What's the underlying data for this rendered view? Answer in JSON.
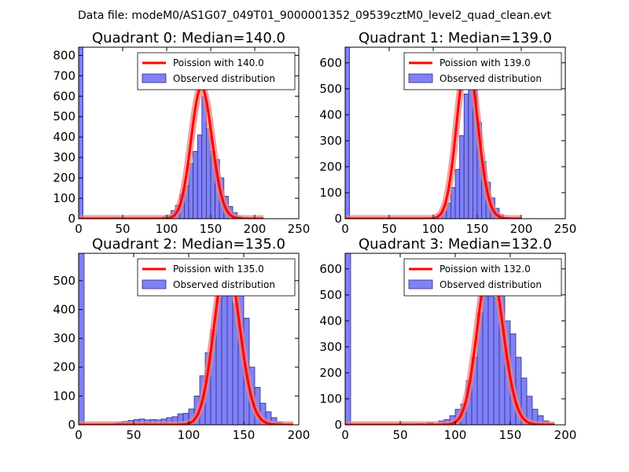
{
  "suptitle": "Data file: modeM0/AS1G07_049T01_9000001352_09539cztM0_level2_quad_clean.evt",
  "colors": {
    "bar_fill": "#8080f8",
    "bar_edge": "#303080",
    "curve": "#ff0000",
    "curve_glow": "#f08080"
  },
  "chart_data": [
    {
      "type": "bar",
      "title": "Quadrant 0: Median=140.0",
      "xlim": [
        0,
        250
      ],
      "ylim": [
        0,
        840
      ],
      "xticks": [
        0,
        50,
        100,
        150,
        200,
        250
      ],
      "yticks": [
        0,
        100,
        200,
        300,
        400,
        500,
        600,
        700,
        800
      ],
      "bin_width": 5,
      "bins": [
        [
          0,
          840
        ],
        [
          95,
          8
        ],
        [
          100,
          15
        ],
        [
          105,
          40
        ],
        [
          110,
          65
        ],
        [
          115,
          120
        ],
        [
          120,
          160
        ],
        [
          125,
          270
        ],
        [
          130,
          330
        ],
        [
          135,
          410
        ],
        [
          140,
          600
        ],
        [
          145,
          440
        ],
        [
          150,
          330
        ],
        [
          155,
          290
        ],
        [
          160,
          200
        ],
        [
          165,
          110
        ],
        [
          170,
          60
        ],
        [
          175,
          30
        ],
        [
          180,
          10
        ],
        [
          185,
          3
        ],
        [
          190,
          1
        ]
      ],
      "poisson": {
        "label": "Poission with 140.0",
        "mu": 140.0,
        "peak": 645,
        "x_range": [
          0,
          210
        ]
      },
      "legend": {
        "observed": "Observed distribution"
      }
    },
    {
      "type": "bar",
      "title": "Quadrant 1: Median=139.0",
      "xlim": [
        0,
        250
      ],
      "ylim": [
        0,
        660
      ],
      "xticks": [
        0,
        50,
        100,
        150,
        200,
        250
      ],
      "yticks": [
        0,
        100,
        200,
        300,
        400,
        500,
        600
      ],
      "bin_width": 5,
      "bins": [
        [
          0,
          660
        ],
        [
          100,
          5
        ],
        [
          105,
          15
        ],
        [
          110,
          30
        ],
        [
          115,
          60
        ],
        [
          120,
          120
        ],
        [
          125,
          190
        ],
        [
          130,
          320
        ],
        [
          135,
          480
        ],
        [
          140,
          580
        ],
        [
          145,
          510
        ],
        [
          150,
          370
        ],
        [
          155,
          220
        ],
        [
          160,
          140
        ],
        [
          165,
          80
        ],
        [
          170,
          40
        ],
        [
          175,
          15
        ],
        [
          180,
          5
        ]
      ],
      "poisson": {
        "label": "Poission with 139.0",
        "mu": 139.0,
        "peak": 620,
        "x_range": [
          0,
          200
        ]
      },
      "legend": {
        "observed": "Observed distribution"
      }
    },
    {
      "type": "bar",
      "title": "Quadrant 2: Median=135.0",
      "xlim": [
        0,
        200
      ],
      "ylim": [
        0,
        595
      ],
      "xticks": [
        0,
        50,
        100,
        150,
        200
      ],
      "yticks": [
        0,
        100,
        200,
        300,
        400,
        500
      ],
      "bin_width": 5,
      "bins": [
        [
          0,
          595
        ],
        [
          30,
          4
        ],
        [
          35,
          8
        ],
        [
          40,
          12
        ],
        [
          45,
          15
        ],
        [
          50,
          18
        ],
        [
          55,
          20
        ],
        [
          60,
          17
        ],
        [
          65,
          18
        ],
        [
          70,
          17
        ],
        [
          75,
          20
        ],
        [
          80,
          25
        ],
        [
          85,
          28
        ],
        [
          90,
          38
        ],
        [
          95,
          40
        ],
        [
          100,
          55
        ],
        [
          105,
          100
        ],
        [
          110,
          170
        ],
        [
          115,
          250
        ],
        [
          120,
          330
        ],
        [
          125,
          440
        ],
        [
          130,
          465
        ],
        [
          135,
          455
        ],
        [
          140,
          420
        ],
        [
          145,
          470
        ],
        [
          150,
          370
        ],
        [
          155,
          200
        ],
        [
          160,
          130
        ],
        [
          165,
          75
        ],
        [
          170,
          45
        ],
        [
          175,
          25
        ],
        [
          180,
          10
        ],
        [
          185,
          2
        ]
      ],
      "poisson": {
        "label": "Poission with 135.0",
        "mu": 135.0,
        "peak": 567,
        "x_range": [
          0,
          195
        ]
      },
      "legend": {
        "observed": "Observed distribution"
      }
    },
    {
      "type": "bar",
      "title": "Quadrant 3: Median=132.0",
      "xlim": [
        0,
        200
      ],
      "ylim": [
        0,
        660
      ],
      "xticks": [
        0,
        50,
        100,
        150,
        200
      ],
      "yticks": [
        0,
        100,
        200,
        300,
        400,
        500,
        600
      ],
      "bin_width": 5,
      "bins": [
        [
          0,
          660
        ],
        [
          65,
          5
        ],
        [
          75,
          8
        ],
        [
          85,
          15
        ],
        [
          90,
          20
        ],
        [
          95,
          35
        ],
        [
          100,
          60
        ],
        [
          105,
          80
        ],
        [
          110,
          170
        ],
        [
          115,
          260
        ],
        [
          120,
          430
        ],
        [
          125,
          560
        ],
        [
          130,
          530
        ],
        [
          135,
          490
        ],
        [
          140,
          590
        ],
        [
          145,
          400
        ],
        [
          150,
          350
        ],
        [
          155,
          260
        ],
        [
          160,
          180
        ],
        [
          165,
          110
        ],
        [
          170,
          60
        ],
        [
          175,
          35
        ],
        [
          180,
          15
        ],
        [
          185,
          5
        ]
      ],
      "poisson": {
        "label": "Poission with 132.0",
        "mu": 132.0,
        "peak": 625,
        "x_range": [
          0,
          190
        ]
      },
      "legend": {
        "observed": "Observed distribution"
      }
    }
  ]
}
